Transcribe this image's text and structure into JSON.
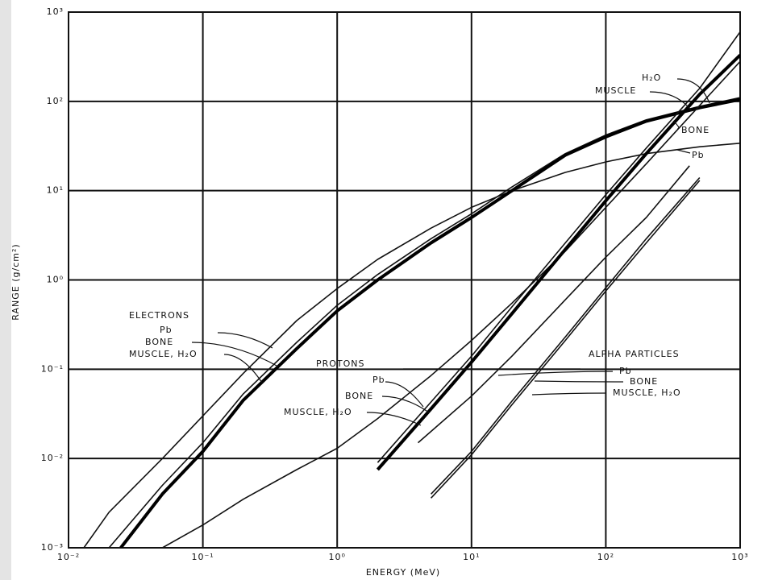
{
  "chart_data": {
    "type": "line",
    "xlabel": "ENERGY (MeV)",
    "ylabel": "RANGE (g/cm²)",
    "xscale": "log",
    "yscale": "log",
    "xlim": [
      0.01,
      1000
    ],
    "ylim": [
      0.001,
      1000
    ],
    "xticks": [
      {
        "value": 0.01,
        "label": "10⁻²"
      },
      {
        "value": 0.1,
        "label": "10⁻¹"
      },
      {
        "value": 1,
        "label": "10⁰"
      },
      {
        "value": 10,
        "label": "10¹"
      },
      {
        "value": 100,
        "label": "10²"
      },
      {
        "value": 1000,
        "label": "10³"
      }
    ],
    "yticks": [
      {
        "value": 0.001,
        "label": "10⁻³"
      },
      {
        "value": 0.01,
        "label": "10⁻²"
      },
      {
        "value": 0.1,
        "label": "10⁻¹"
      },
      {
        "value": 1,
        "label": "10⁰"
      },
      {
        "value": 10,
        "label": "10¹"
      },
      {
        "value": 100,
        "label": "10²"
      },
      {
        "value": 1000,
        "label": "10³"
      }
    ],
    "grid": true,
    "groups": [
      "ELECTRONS",
      "PROTONS",
      "ALPHA PARTICLES"
    ],
    "annotations": [
      "H₂O",
      "MUSCLE",
      "BONE",
      "Pb"
    ],
    "series": [
      {
        "name": "Pb",
        "color": "#111111",
        "line_width": 1.6,
        "x": [
          0.013,
          0.02,
          0.05,
          0.1,
          0.2,
          0.5,
          1,
          2,
          5,
          10,
          20,
          50,
          100,
          200,
          500,
          1000
        ],
        "values": [
          0.001,
          0.0025,
          0.01,
          0.03,
          0.09,
          0.35,
          0.8,
          1.7,
          3.8,
          6.5,
          10,
          16,
          21,
          26,
          31,
          34
        ]
      },
      {
        "name": "BONE",
        "color": "#111111",
        "line_width": 1.6,
        "x": [
          0.02,
          0.05,
          0.1,
          0.2,
          0.5,
          1,
          2,
          5,
          10,
          20,
          50,
          100,
          200,
          500,
          1000
        ],
        "values": [
          0.001,
          0.005,
          0.015,
          0.053,
          0.2,
          0.52,
          1.15,
          2.9,
          5.5,
          11,
          26,
          42,
          62,
          88,
          110
        ]
      },
      {
        "name": "MUSCLE, H₂O",
        "color": "#000000",
        "line_width": 4,
        "x": [
          0.0245,
          0.05,
          0.1,
          0.2,
          0.5,
          1,
          2,
          5,
          10,
          20,
          50,
          100,
          200,
          500,
          1000
        ],
        "values": [
          0.001,
          0.004,
          0.012,
          0.045,
          0.17,
          0.45,
          1.0,
          2.6,
          5,
          10,
          25,
          40,
          60,
          85,
          105
        ]
      },
      {
        "name": "Pb",
        "color": "#111111",
        "line_width": 1.6,
        "x": [
          0.05,
          0.1,
          0.2,
          0.5,
          1,
          2,
          5,
          10,
          20,
          50,
          100,
          200,
          500,
          1000
        ],
        "values": [
          0.001,
          0.0018,
          0.0035,
          0.0075,
          0.013,
          0.028,
          0.085,
          0.21,
          0.55,
          2.1,
          6.5,
          20,
          90,
          280
        ]
      },
      {
        "name": "BONE",
        "color": "#111111",
        "line_width": 1.6,
        "x": [
          2,
          5,
          10,
          20,
          50,
          100,
          200,
          500,
          1000
        ],
        "values": [
          0.009,
          0.043,
          0.14,
          0.5,
          2.6,
          9,
          30,
          140,
          600
        ]
      },
      {
        "name": "MUSCLE, H₂O",
        "color": "#000000",
        "line_width": 4,
        "x": [
          2,
          5,
          10,
          20,
          50,
          100,
          200,
          500,
          1000
        ],
        "values": [
          0.0075,
          0.036,
          0.12,
          0.42,
          2.2,
          7.7,
          26,
          120,
          330
        ]
      },
      {
        "name": "Pb",
        "color": "#111111",
        "line_width": 1.6,
        "x": [
          4,
          10,
          20,
          50,
          100,
          200,
          420
        ],
        "values": [
          0.015,
          0.05,
          0.14,
          0.6,
          1.8,
          5,
          19
        ]
      },
      {
        "name": "BONE",
        "color": "#111111",
        "line_width": 1.6,
        "x": [
          5,
          10,
          20,
          50,
          100,
          200,
          500
        ],
        "values": [
          0.004,
          0.012,
          0.044,
          0.23,
          0.82,
          2.9,
          14
        ]
      },
      {
        "name": "MUSCLE, H₂O",
        "color": "#111111",
        "line_width": 1.6,
        "x": [
          5,
          10,
          20,
          50,
          100,
          200,
          500
        ],
        "values": [
          0.0036,
          0.011,
          0.04,
          0.21,
          0.75,
          2.6,
          13
        ]
      }
    ]
  }
}
